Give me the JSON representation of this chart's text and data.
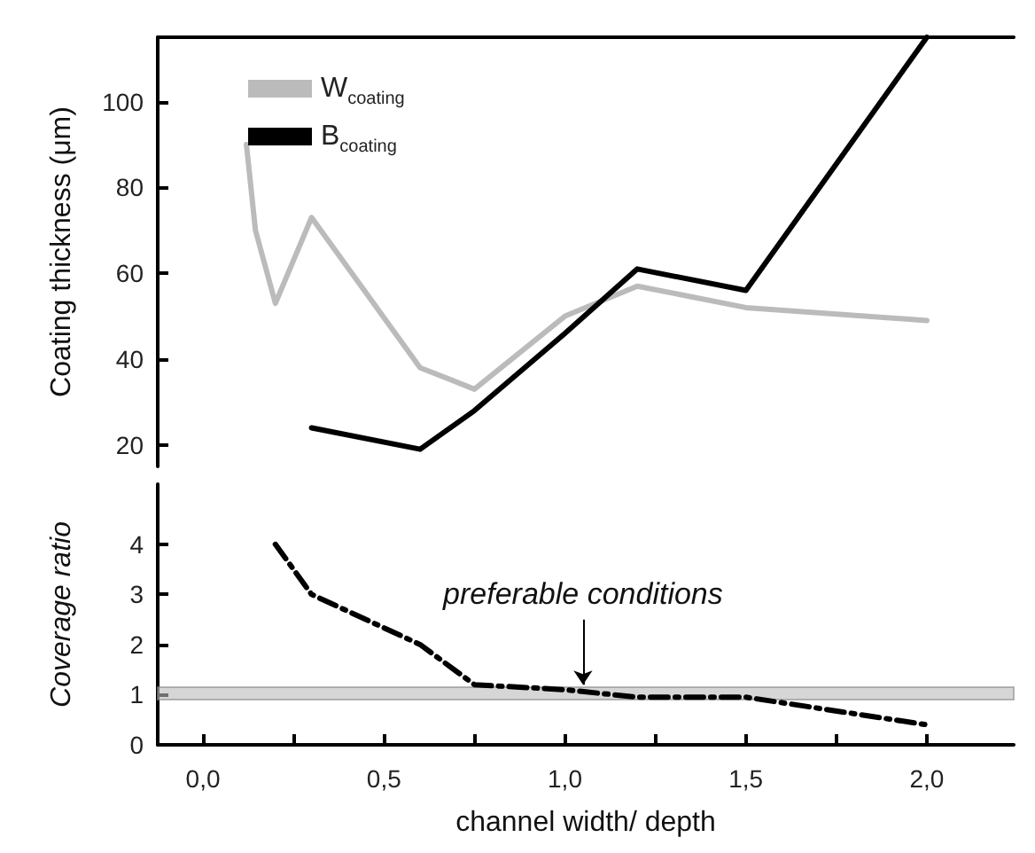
{
  "chart_data": [
    {
      "type": "line",
      "ylabel": "Coating thickness (μm)",
      "legend": "top left",
      "tick_labels": "y",
      "marker": "none",
      "line_style": "solid",
      "xlim": [
        -0.125,
        2.24
      ],
      "ylim": [
        15,
        115
      ],
      "yticks": [
        20,
        40,
        60,
        80,
        100
      ],
      "series": [
        {
          "name": "W$_{coating}$",
          "color": "#bbbbbb",
          "x": [
            0.12,
            0.145,
            0.2,
            0.3,
            0.6,
            0.75,
            1.0,
            1.2,
            1.5,
            2.0
          ],
          "values": [
            90,
            70,
            53,
            73,
            38,
            33,
            50,
            57,
            52,
            49
          ]
        },
        {
          "name": "B$_{coating}$",
          "color": "#000000",
          "x": [
            0.3,
            0.6,
            0.75,
            1.0,
            1.2,
            1.5,
            2.0
          ],
          "values": [
            24,
            19,
            28,
            46,
            61,
            56,
            115
          ]
        }
      ]
    },
    {
      "type": "line",
      "xlabel": "channel width/ depth",
      "ylabel": "Coverage ratio",
      "marker": "none",
      "line_style": "dashed",
      "xlim": [
        -0.125,
        2.24
      ],
      "xticks": [
        {
          "value": 0,
          "label": "0,0"
        },
        {
          "value": 0.25,
          "label": null
        },
        {
          "value": 0.5,
          "label": "0,5"
        },
        {
          "value": 0.75,
          "label": null
        },
        {
          "value": 1,
          "label": "1,0"
        },
        {
          "value": 1.25,
          "label": null
        },
        {
          "value": 1.5,
          "label": "1,5"
        },
        {
          "value": 1.75,
          "label": null
        },
        {
          "value": 2,
          "label": "2,0"
        }
      ],
      "ylim": [
        0,
        5.2
      ],
      "yticks": [
        0,
        1,
        2,
        3,
        4
      ],
      "series": [
        {
          "color": "#000000",
          "x": [
            0.2,
            0.3,
            0.6,
            0.75,
            1.0,
            1.2,
            1.5,
            2.0
          ],
          "values": [
            4.0,
            3.0,
            2.0,
            1.2,
            1.1,
            0.95,
            0.95,
            0.4
          ]
        }
      ],
      "bands": [
        {
          "axis": "y",
          "from": 0.9,
          "to": 1.15,
          "color": "#bbbbbb"
        }
      ],
      "annotations": [
        {
          "text": "preferable conditions",
          "x": 1.05,
          "y": 1.2
        }
      ]
    }
  ]
}
